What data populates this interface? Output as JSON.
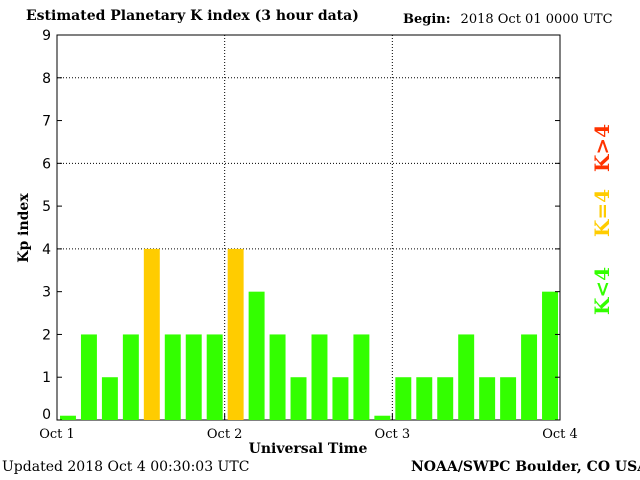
{
  "header": {
    "title": "Estimated Planetary K index (3 hour data)",
    "begin_label": "Begin:",
    "begin_value": "2018 Oct 01 0000 UTC"
  },
  "footer": {
    "updated": "Updated 2018 Oct  4 00:30:03 UTC",
    "credit": "NOAA/SWPC Boulder, CO USA"
  },
  "legend": [
    {
      "label": "K>4",
      "color": "#ff3300"
    },
    {
      "label": "K=4",
      "color": "#ffcc00"
    },
    {
      "label": "K<4",
      "color": "#33ff00"
    }
  ],
  "chart_data": {
    "type": "bar",
    "title": "Estimated Planetary K index (3 hour data)",
    "xlabel": "Universal Time",
    "ylabel": "Kp index",
    "ylim": [
      0,
      9
    ],
    "yticks": [
      0,
      1,
      2,
      3,
      4,
      5,
      6,
      7,
      8,
      9
    ],
    "x_tick_labels": [
      "Oct 1",
      "Oct 2",
      "Oct 3",
      "Oct 4"
    ],
    "grid": "dotted at y=4,6,8 and day boundaries",
    "values": [
      0.1,
      2,
      1,
      2,
      4,
      2,
      2,
      2,
      4,
      3,
      2,
      1,
      2,
      1,
      2,
      0.1,
      1,
      1,
      1,
      2,
      1,
      1,
      2,
      3
    ],
    "colors": {
      "low": "#33ff00",
      "mid": "#ffcc00",
      "high": "#ff3300"
    }
  }
}
